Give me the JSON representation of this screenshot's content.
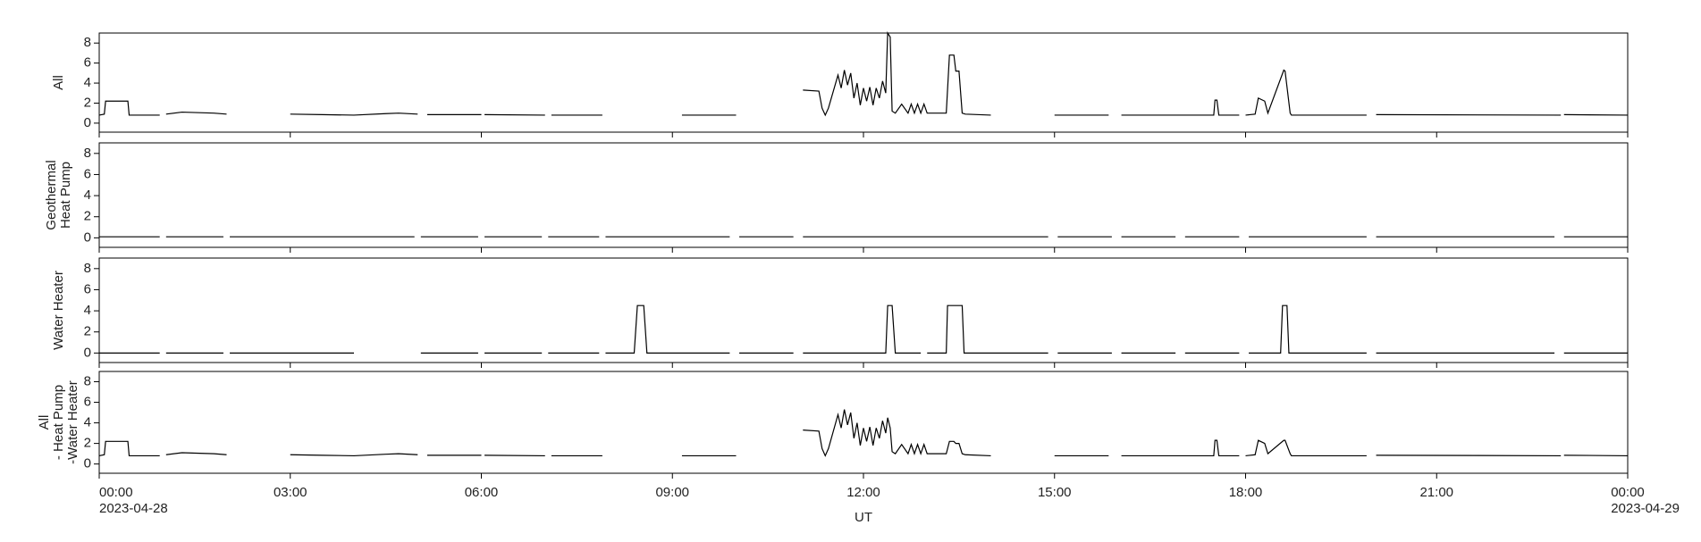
{
  "chart_data": [
    {
      "type": "line",
      "ylabel": [
        "All"
      ],
      "xlim": [
        0,
        24
      ],
      "ylim": [
        -0.9,
        9.0
      ],
      "yticks": [
        0,
        2,
        4,
        6,
        8
      ],
      "x": [
        0,
        0.08,
        0.1,
        0.45,
        0.47,
        0.95,
        null,
        1.05,
        1.3,
        1.8,
        2.0,
        null,
        3.0,
        3.5,
        4.0,
        4.5,
        4.7,
        5.0,
        null,
        5.15,
        6.0,
        null,
        6.05,
        7.0,
        null,
        7.1,
        7.9,
        null,
        9.15,
        10.0,
        null,
        11.05,
        11.3,
        11.35,
        11.4,
        11.45,
        11.6,
        11.65,
        11.7,
        11.75,
        11.8,
        11.85,
        11.9,
        11.95,
        12.0,
        12.05,
        12.1,
        12.15,
        12.2,
        12.25,
        12.3,
        12.35,
        12.38,
        12.42,
        12.45,
        12.5,
        12.6,
        12.7,
        12.75,
        12.8,
        12.85,
        12.9,
        12.95,
        13.0,
        13.05,
        13.3,
        13.35,
        13.42,
        13.45,
        13.5,
        13.55,
        13.6,
        14.0,
        null,
        15.0,
        15.85,
        null,
        16.05,
        17.5,
        17.52,
        17.55,
        17.58,
        17.9,
        null,
        18.0,
        18.15,
        18.2,
        18.3,
        18.35,
        18.6,
        18.62,
        18.7,
        18.72,
        19.9,
        null,
        20.05,
        22.95,
        null,
        23.0,
        24.0
      ],
      "series": [
        {
          "color": "#000000",
          "values": [
            0.8,
            0.9,
            2.2,
            2.2,
            0.8,
            0.8,
            null,
            0.9,
            1.1,
            1.0,
            0.9,
            null,
            0.9,
            0.85,
            0.8,
            0.95,
            1.0,
            0.9,
            null,
            0.85,
            0.85,
            null,
            0.85,
            0.8,
            null,
            0.8,
            0.8,
            null,
            0.8,
            0.8,
            null,
            3.3,
            3.2,
            1.5,
            0.8,
            1.5,
            4.8,
            3.5,
            5.3,
            3.8,
            5.0,
            2.5,
            4.0,
            1.8,
            3.5,
            2.2,
            3.6,
            1.8,
            3.5,
            2.5,
            4.2,
            3.0,
            9.0,
            8.6,
            1.2,
            1.0,
            1.9,
            1.0,
            1.9,
            1.0,
            1.9,
            1.0,
            1.9,
            1.0,
            1.0,
            1.0,
            6.8,
            6.8,
            5.2,
            5.2,
            1.0,
            0.9,
            0.8,
            null,
            0.8,
            0.8,
            null,
            0.8,
            0.8,
            2.3,
            2.3,
            0.8,
            0.8,
            null,
            0.8,
            0.9,
            2.5,
            2.2,
            1.0,
            5.3,
            5.2,
            1.0,
            0.8,
            0.8,
            null,
            0.85,
            0.8,
            null,
            0.85,
            0.8
          ]
        }
      ]
    },
    {
      "type": "line",
      "ylabel": [
        "Geothermal",
        "Heat Pump"
      ],
      "xlim": [
        0,
        24
      ],
      "ylim": [
        -0.9,
        9.0
      ],
      "yticks": [
        0,
        2,
        4,
        6,
        8
      ],
      "x": [
        0,
        0.95,
        null,
        1.05,
        1.95,
        null,
        2.05,
        4.95,
        null,
        5.05,
        5.95,
        null,
        6.05,
        6.95,
        null,
        7.05,
        7.85,
        null,
        7.95,
        9.9,
        null,
        10.05,
        10.9,
        null,
        11.05,
        14.9,
        null,
        15.05,
        15.9,
        null,
        16.05,
        16.9,
        null,
        17.05,
        17.9,
        null,
        18.05,
        19.9,
        null,
        20.05,
        22.85,
        null,
        23.0,
        24.0
      ],
      "series": [
        {
          "color": "#000000",
          "values": [
            0.1,
            0.1,
            null,
            0.1,
            0.1,
            null,
            0.1,
            0.1,
            null,
            0.1,
            0.1,
            null,
            0.1,
            0.1,
            null,
            0.1,
            0.1,
            null,
            0.1,
            0.1,
            null,
            0.1,
            0.1,
            null,
            0.1,
            0.1,
            null,
            0.1,
            0.1,
            null,
            0.1,
            0.1,
            null,
            0.1,
            0.1,
            null,
            0.1,
            0.1,
            null,
            0.1,
            0.1,
            null,
            0.1,
            0.1
          ]
        }
      ]
    },
    {
      "type": "line",
      "ylabel": [
        "Water Heater"
      ],
      "xlim": [
        0,
        24
      ],
      "ylim": [
        -0.9,
        9.0
      ],
      "yticks": [
        0,
        2,
        4,
        6,
        8
      ],
      "x": [
        0,
        0.95,
        null,
        1.05,
        1.95,
        null,
        2.05,
        4.0,
        null,
        5.05,
        5.95,
        null,
        6.05,
        6.95,
        null,
        7.05,
        7.85,
        null,
        7.95,
        8.4,
        8.45,
        8.55,
        8.6,
        9.9,
        null,
        10.05,
        10.9,
        null,
        11.05,
        12.35,
        12.38,
        12.45,
        12.5,
        12.9,
        null,
        13.0,
        13.3,
        13.32,
        13.55,
        13.58,
        14.9,
        null,
        15.05,
        15.9,
        null,
        16.05,
        16.9,
        null,
        17.05,
        17.9,
        null,
        18.05,
        18.55,
        18.58,
        18.65,
        18.68,
        19.9,
        null,
        20.05,
        22.85,
        null,
        23.0,
        24.0
      ],
      "series": [
        {
          "color": "#000000",
          "values": [
            0,
            0,
            null,
            0,
            0,
            null,
            0,
            0,
            null,
            0,
            0,
            null,
            0,
            0,
            null,
            0,
            0,
            null,
            0,
            0,
            4.5,
            4.5,
            0,
            0,
            null,
            0,
            0,
            null,
            0,
            0,
            4.5,
            4.5,
            0,
            0,
            null,
            0,
            0,
            4.5,
            4.5,
            0,
            0,
            null,
            0,
            0,
            null,
            0,
            0,
            null,
            0,
            0,
            null,
            0,
            0,
            4.5,
            4.5,
            0,
            0,
            null,
            0,
            0,
            null,
            0,
            0
          ]
        }
      ]
    },
    {
      "type": "line",
      "ylabel": [
        "All",
        " - Heat Pump",
        " -Water Heater"
      ],
      "xlabel": "UT",
      "xlim": [
        0,
        24
      ],
      "ylim": [
        -0.9,
        9.0
      ],
      "yticks": [
        0,
        2,
        4,
        6,
        8
      ],
      "xticks": [
        {
          "value": 0,
          "label": "00:00"
        },
        {
          "value": 3,
          "label": "03:00"
        },
        {
          "value": 6,
          "label": "06:00"
        },
        {
          "value": 9,
          "label": "09:00"
        },
        {
          "value": 12,
          "label": "12:00"
        },
        {
          "value": 15,
          "label": "15:00"
        },
        {
          "value": 18,
          "label": "18:00"
        },
        {
          "value": 21,
          "label": "21:00"
        },
        {
          "value": 24,
          "label": "00:00"
        }
      ],
      "date_labels": [
        {
          "value": 0,
          "label": "2023-04-28"
        },
        {
          "value": 24,
          "label": "2023-04-29"
        }
      ],
      "x": [
        0,
        0.08,
        0.1,
        0.45,
        0.47,
        0.95,
        null,
        1.05,
        1.3,
        1.8,
        2.0,
        null,
        3.0,
        3.5,
        4.0,
        4.5,
        4.7,
        5.0,
        null,
        5.15,
        6.0,
        null,
        6.05,
        7.0,
        null,
        7.1,
        7.9,
        null,
        9.15,
        10.0,
        null,
        11.05,
        11.3,
        11.35,
        11.4,
        11.45,
        11.6,
        11.65,
        11.7,
        11.75,
        11.8,
        11.85,
        11.9,
        11.95,
        12.0,
        12.05,
        12.1,
        12.15,
        12.2,
        12.25,
        12.3,
        12.35,
        12.38,
        12.42,
        12.45,
        12.5,
        12.6,
        12.7,
        12.75,
        12.8,
        12.85,
        12.9,
        12.95,
        13.0,
        13.05,
        13.3,
        13.35,
        13.42,
        13.45,
        13.5,
        13.55,
        13.6,
        14.0,
        null,
        15.0,
        15.85,
        null,
        16.05,
        17.5,
        17.52,
        17.55,
        17.58,
        17.9,
        null,
        18.0,
        18.15,
        18.2,
        18.3,
        18.35,
        18.6,
        18.62,
        18.7,
        18.72,
        19.9,
        null,
        20.05,
        22.95,
        null,
        23.0,
        24.0
      ],
      "series": [
        {
          "color": "#000000",
          "values": [
            0.8,
            0.9,
            2.2,
            2.2,
            0.8,
            0.8,
            null,
            0.9,
            1.1,
            1.0,
            0.9,
            null,
            0.9,
            0.85,
            0.8,
            0.95,
            1.0,
            0.9,
            null,
            0.85,
            0.85,
            null,
            0.85,
            0.8,
            null,
            0.8,
            0.8,
            null,
            0.8,
            0.8,
            null,
            3.3,
            3.2,
            1.5,
            0.8,
            1.5,
            4.8,
            3.5,
            5.3,
            3.8,
            5.0,
            2.5,
            4.0,
            1.8,
            3.5,
            2.2,
            3.6,
            1.8,
            3.5,
            2.5,
            4.2,
            3.0,
            4.5,
            3.5,
            1.2,
            1.0,
            1.9,
            1.0,
            1.9,
            1.0,
            1.9,
            1.0,
            1.9,
            1.0,
            1.0,
            1.0,
            2.2,
            2.2,
            2.0,
            2.0,
            1.0,
            0.9,
            0.8,
            null,
            0.8,
            0.8,
            null,
            0.8,
            0.8,
            2.3,
            2.3,
            0.8,
            0.8,
            null,
            0.8,
            0.9,
            2.3,
            2.0,
            1.0,
            2.3,
            2.3,
            1.0,
            0.8,
            0.8,
            null,
            0.85,
            0.8,
            null,
            0.85,
            0.8
          ]
        }
      ]
    }
  ]
}
